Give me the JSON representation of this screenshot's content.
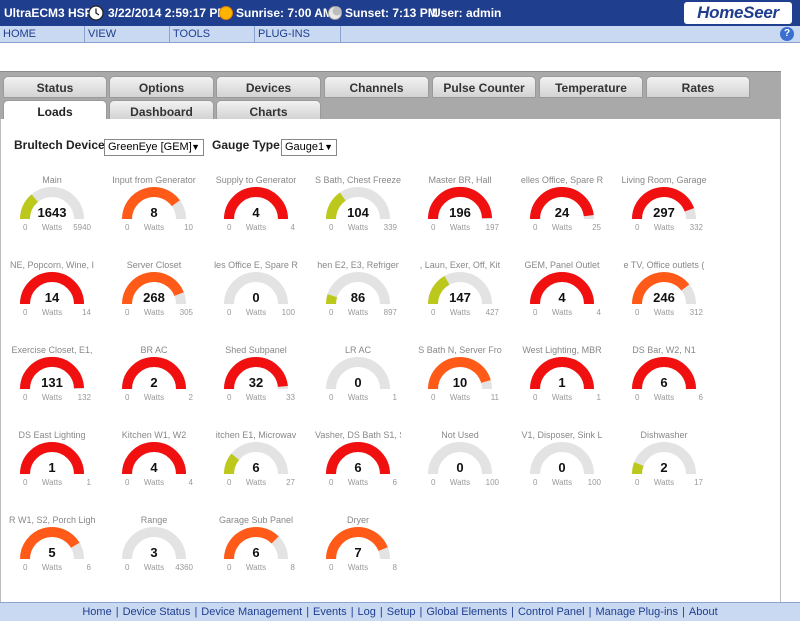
{
  "header": {
    "app_title": "UltraECM3 HSPI",
    "datetime": "3/22/2014 2:59:17 PM",
    "sunrise": "Sunrise: 7:00 AM",
    "sunset": "Sunset: 7:13 PM",
    "user": "User: admin",
    "brand": "HomeSeer"
  },
  "menu": [
    "HOME",
    "VIEW",
    "TOOLS",
    "PLUG-INS"
  ],
  "help": "?",
  "tabs": {
    "row1": [
      "Status",
      "Options",
      "Devices",
      "Channels",
      "Pulse Counter",
      "Temperature",
      "Rates"
    ],
    "row2": [
      "Loads",
      "Dashboard",
      "Charts"
    ],
    "active": "Loads"
  },
  "filters": {
    "device_label": "Brultech Device:",
    "device_value": "GreenEye [GEM]",
    "gauge_label": "Gauge Type:",
    "gauge_value": "Gauge1"
  },
  "colors": {
    "gray": "#e3e3e3",
    "green": "#bcc81c",
    "orange": "#ff5a17",
    "red": "#f01010",
    "orange_light": "#ff6a1a"
  },
  "gauges": [
    {
      "title": "Main",
      "value": "1643",
      "min": "0",
      "max": "5940",
      "unit": "Watts",
      "fraction": 0.28,
      "color": "green"
    },
    {
      "title": "Input from Generator",
      "value": "8",
      "min": "0",
      "max": "10",
      "unit": "Watts",
      "fraction": 0.8,
      "color": "orange"
    },
    {
      "title": "Supply to Generator",
      "value": "4",
      "min": "0",
      "max": "4",
      "unit": "Watts",
      "fraction": 1.0,
      "color": "red"
    },
    {
      "title": "S Bath, Chest Freeze",
      "value": "104",
      "min": "0",
      "max": "339",
      "unit": "Watts",
      "fraction": 0.31,
      "color": "green"
    },
    {
      "title": "Master BR, Hall",
      "value": "196",
      "min": "0",
      "max": "197",
      "unit": "Watts",
      "fraction": 0.99,
      "color": "red"
    },
    {
      "title": "elles Office, Spare R",
      "value": "24",
      "min": "0",
      "max": "25",
      "unit": "Watts",
      "fraction": 0.96,
      "color": "red"
    },
    {
      "title": "Living Room, Garage",
      "value": "297",
      "min": "0",
      "max": "332",
      "unit": "Watts",
      "fraction": 0.89,
      "color": "red"
    },
    {
      "title": "NE, Popcorn, Wine, I",
      "value": "14",
      "min": "0",
      "max": "14",
      "unit": "Watts",
      "fraction": 1.0,
      "color": "red"
    },
    {
      "title": "Server Closet",
      "value": "268",
      "min": "0",
      "max": "305",
      "unit": "Watts",
      "fraction": 0.88,
      "color": "orange"
    },
    {
      "title": "les Office E, Spare R",
      "value": "0",
      "min": "0",
      "max": "100",
      "unit": "Watts",
      "fraction": 0.0,
      "color": "gray"
    },
    {
      "title": "hen E2, E3, Refriger",
      "value": "86",
      "min": "0",
      "max": "897",
      "unit": "Watts",
      "fraction": 0.1,
      "color": "green"
    },
    {
      "title": ", Laun, Exer, Off, Kit",
      "value": "147",
      "min": "0",
      "max": "427",
      "unit": "Watts",
      "fraction": 0.34,
      "color": "green"
    },
    {
      "title": "GEM, Panel Outlet",
      "value": "4",
      "min": "0",
      "max": "4",
      "unit": "Watts",
      "fraction": 1.0,
      "color": "red"
    },
    {
      "title": "e TV, Office outlets (",
      "value": "246",
      "min": "0",
      "max": "312",
      "unit": "Watts",
      "fraction": 0.79,
      "color": "orange"
    },
    {
      "title": "Exercise Closet, E1,",
      "value": "131",
      "min": "0",
      "max": "132",
      "unit": "Watts",
      "fraction": 0.99,
      "color": "red"
    },
    {
      "title": "BR AC",
      "value": "2",
      "min": "0",
      "max": "2",
      "unit": "Watts",
      "fraction": 1.0,
      "color": "red"
    },
    {
      "title": "Shed Subpanel",
      "value": "32",
      "min": "0",
      "max": "33",
      "unit": "Watts",
      "fraction": 0.97,
      "color": "red"
    },
    {
      "title": "LR AC",
      "value": "0",
      "min": "0",
      "max": "1",
      "unit": "Watts",
      "fraction": 0.0,
      "color": "gray"
    },
    {
      "title": "S Bath N, Server Fro",
      "value": "10",
      "min": "0",
      "max": "11",
      "unit": "Watts",
      "fraction": 0.91,
      "color": "orange"
    },
    {
      "title": "West Lighting, MBR",
      "value": "1",
      "min": "0",
      "max": "1",
      "unit": "Watts",
      "fraction": 1.0,
      "color": "red"
    },
    {
      "title": "DS Bar, W2, N1",
      "value": "6",
      "min": "0",
      "max": "6",
      "unit": "Watts",
      "fraction": 1.0,
      "color": "red"
    },
    {
      "title": "DS East Lighting",
      "value": "1",
      "min": "0",
      "max": "1",
      "unit": "Watts",
      "fraction": 1.0,
      "color": "red"
    },
    {
      "title": "Kitchen W1, W2",
      "value": "4",
      "min": "0",
      "max": "4",
      "unit": "Watts",
      "fraction": 1.0,
      "color": "red"
    },
    {
      "title": "itchen E1, Microwav",
      "value": "6",
      "min": "0",
      "max": "27",
      "unit": "Watts",
      "fraction": 0.22,
      "color": "green"
    },
    {
      "title": "Vasher, DS Bath S1, S",
      "value": "6",
      "min": "0",
      "max": "6",
      "unit": "Watts",
      "fraction": 1.0,
      "color": "red"
    },
    {
      "title": "Not Used",
      "value": "0",
      "min": "0",
      "max": "100",
      "unit": "Watts",
      "fraction": 0.0,
      "color": "gray"
    },
    {
      "title": "V1, Disposer, Sink L",
      "value": "0",
      "min": "0",
      "max": "100",
      "unit": "Watts",
      "fraction": 0.0,
      "color": "gray"
    },
    {
      "title": "Dishwasher",
      "value": "2",
      "min": "0",
      "max": "17",
      "unit": "Watts",
      "fraction": 0.12,
      "color": "green"
    },
    {
      "title": "R W1, S2, Porch Ligh",
      "value": "5",
      "min": "0",
      "max": "6",
      "unit": "Watts",
      "fraction": 0.83,
      "color": "orange"
    },
    {
      "title": "Range",
      "value": "3",
      "min": "0",
      "max": "4360",
      "unit": "Watts",
      "fraction": 0.0,
      "color": "gray"
    },
    {
      "title": "Garage Sub Panel",
      "value": "6",
      "min": "0",
      "max": "8",
      "unit": "Watts",
      "fraction": 0.75,
      "color": "orange"
    },
    {
      "title": "Dryer",
      "value": "7",
      "min": "0",
      "max": "8",
      "unit": "Watts",
      "fraction": 0.88,
      "color": "orange"
    }
  ],
  "footer": [
    "Home",
    "Device Status",
    "Device Management",
    "Events",
    "Log",
    "Setup",
    "Global Elements",
    "Control Panel",
    "Manage Plug-ins",
    "About"
  ]
}
